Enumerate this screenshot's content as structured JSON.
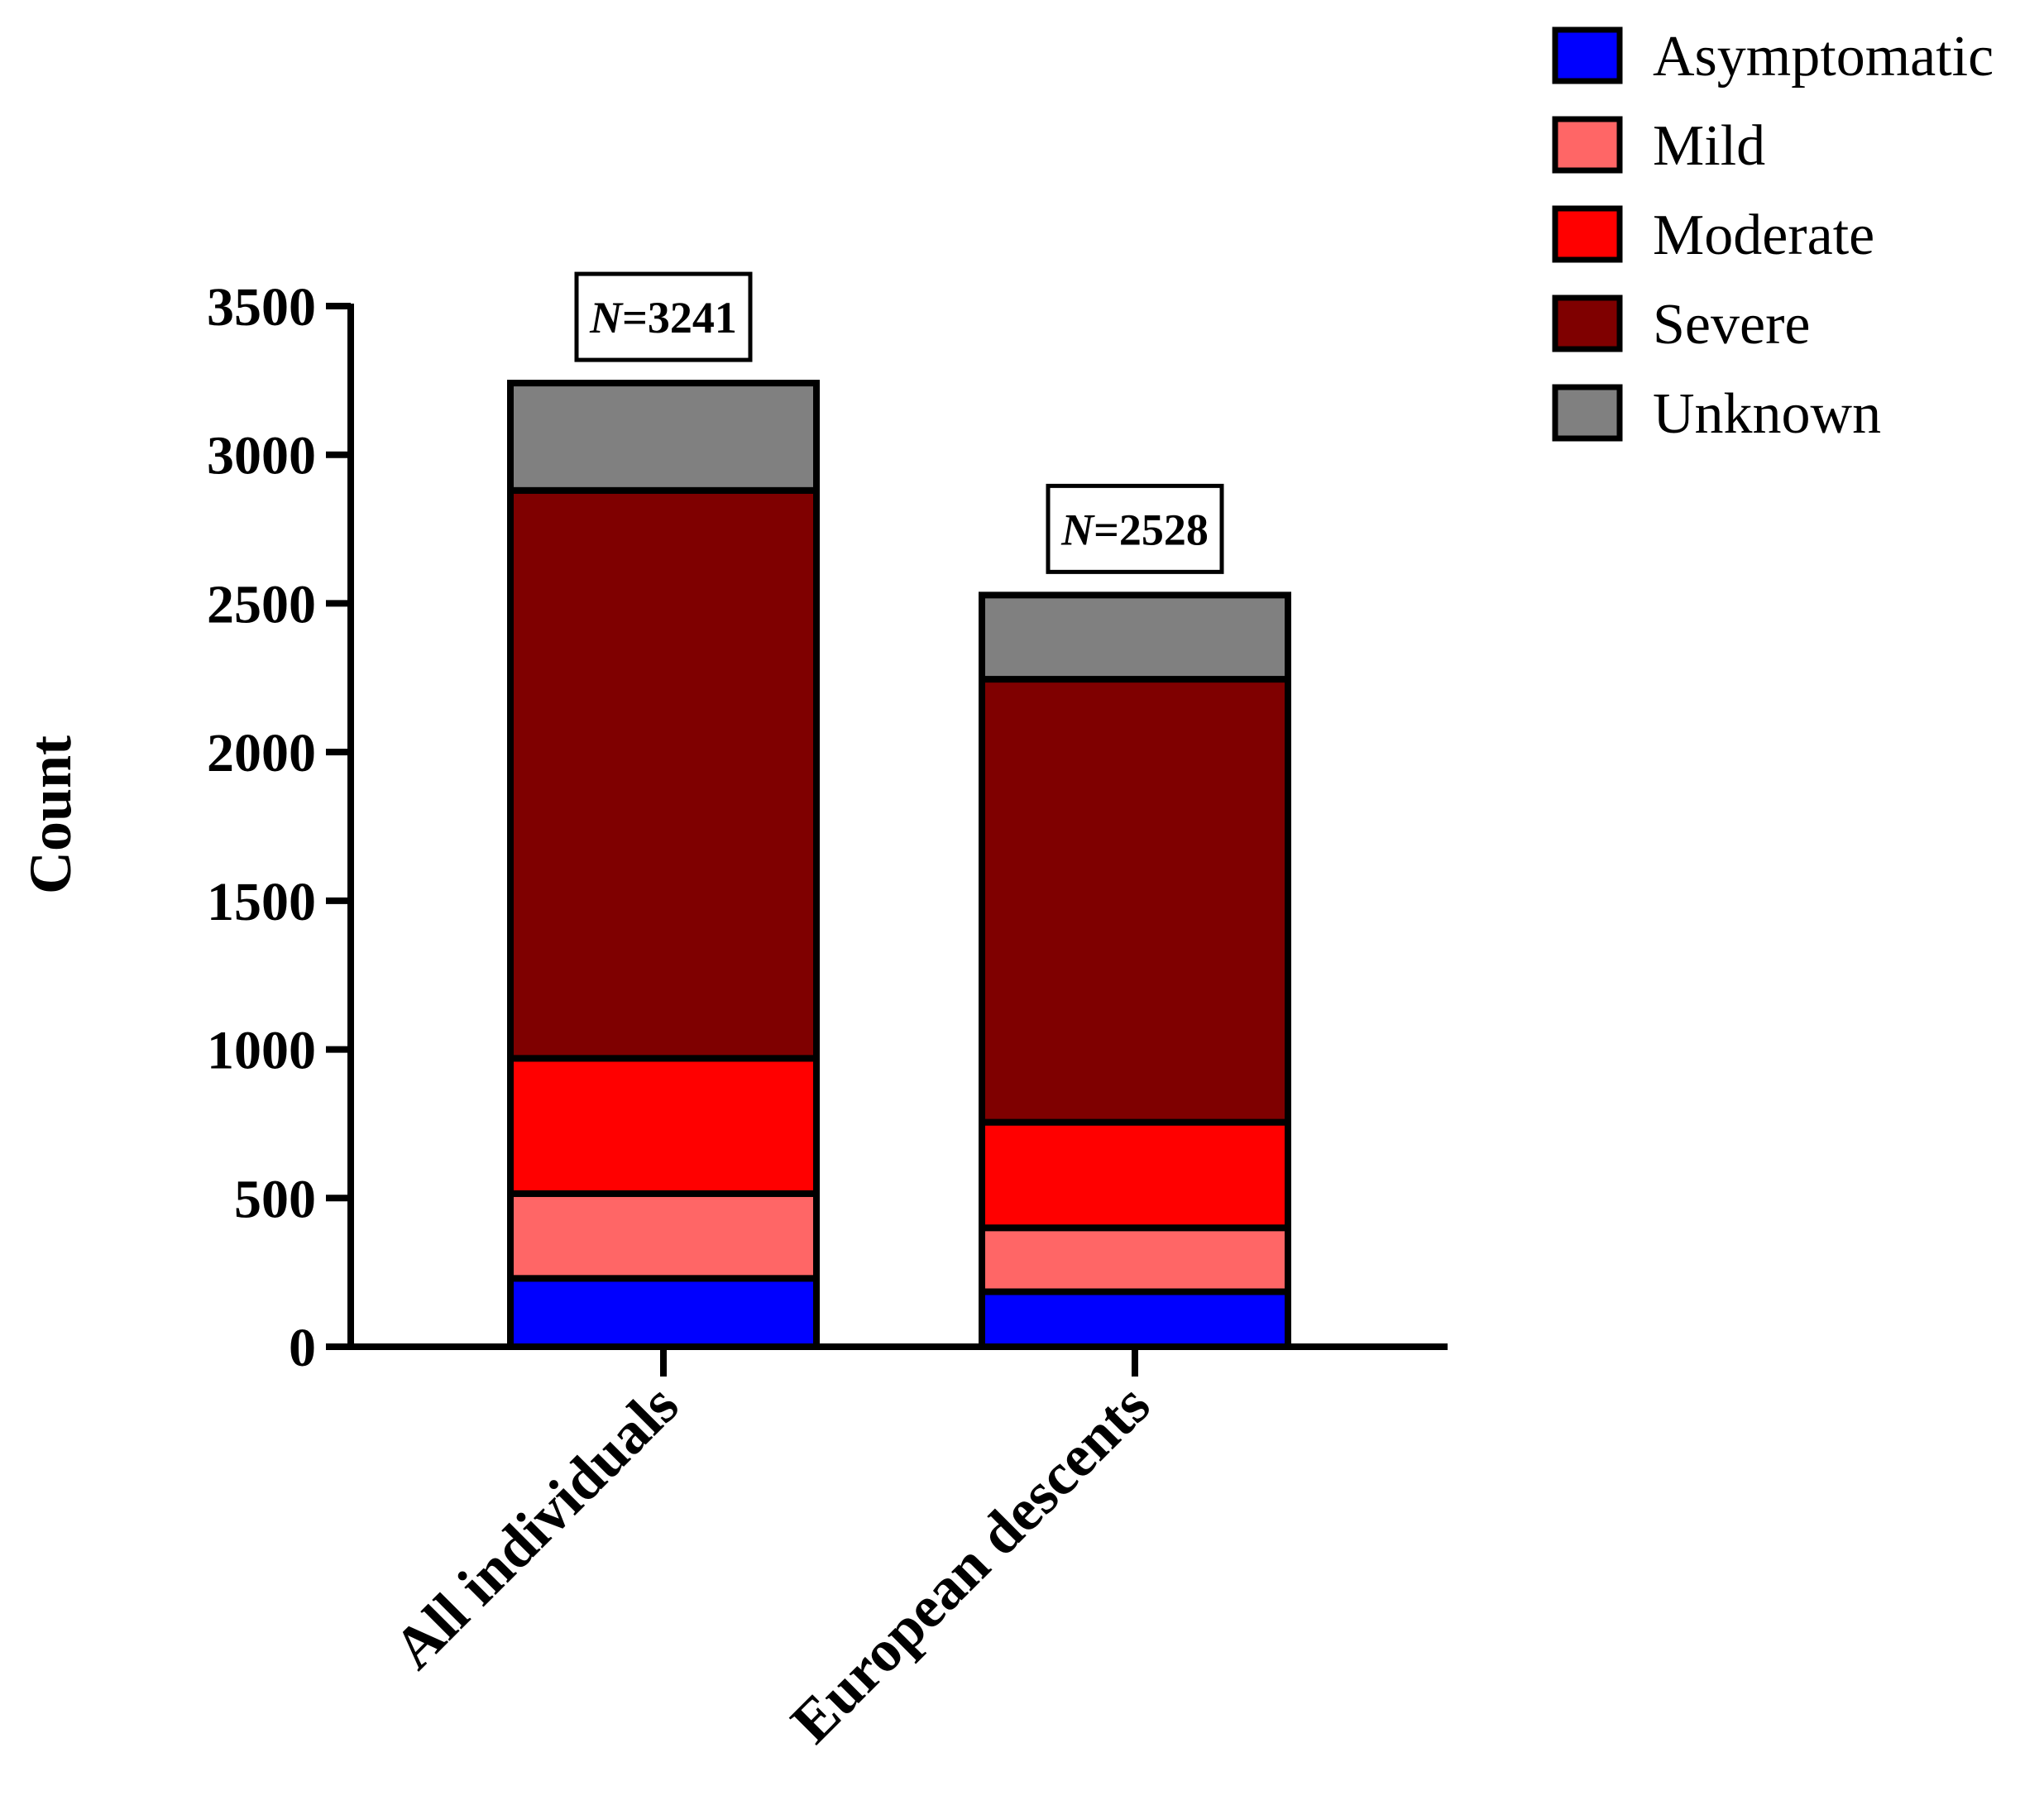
{
  "chart_data": {
    "type": "bar",
    "stacked": true,
    "categories": [
      "All individuals",
      "European descents"
    ],
    "series": [
      {
        "name": "Asymptomatic",
        "color": "#0000ff",
        "values": [
          230,
          185
        ]
      },
      {
        "name": "Mild",
        "color": "#ff6666",
        "values": [
          285,
          215
        ]
      },
      {
        "name": "Moderate",
        "color": "#ff0000",
        "values": [
          455,
          355
        ]
      },
      {
        "name": "Severe",
        "color": "#7f0000",
        "values": [
          1910,
          1490
        ]
      },
      {
        "name": "Unknown",
        "color": "#808080",
        "values": [
          361,
          283
        ]
      }
    ],
    "totals": [
      {
        "prefix": "N",
        "value": "=3241"
      },
      {
        "prefix": "N",
        "value": "=2528"
      }
    ],
    "title": "",
    "xlabel": "",
    "ylabel": "Count",
    "ylim": [
      0,
      3500
    ],
    "yticks": [
      0,
      500,
      1000,
      1500,
      2000,
      2500,
      3000,
      3500
    ],
    "grid": false,
    "legend_position": "top-right"
  }
}
